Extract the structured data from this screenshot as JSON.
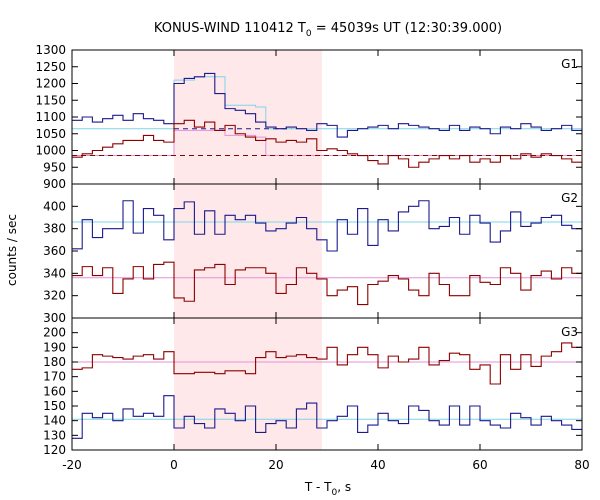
{
  "chart_data": {
    "type": "line",
    "title": "KONUS-WIND 110412 T",
    "title_sub": "0",
    "title_rest": " = 45039s UT (12:30:39.000)",
    "xlabel": "T - T",
    "xlabel_sub": "0",
    "xlabel_rest": ", s",
    "ylabel": "counts / sec",
    "xlim": [
      -20,
      80
    ],
    "x_ticks": [
      -20,
      0,
      20,
      40,
      60,
      80
    ],
    "x_tick_labels": [
      "-20",
      "0",
      "20",
      "40",
      "60",
      "80"
    ],
    "highlight_interval": [
      0,
      29
    ],
    "highlight_color": "#ffe8ea",
    "bin_edges": [
      -20,
      -18,
      -16,
      -14,
      -12,
      -10,
      -8,
      -6,
      -4,
      -2,
      0,
      2,
      4,
      6,
      8,
      10,
      12,
      14,
      16,
      18,
      20,
      22,
      24,
      26,
      28,
      30,
      32,
      34,
      36,
      38,
      40,
      42,
      44,
      46,
      48,
      50,
      52,
      54,
      56,
      58,
      60,
      62,
      64,
      66,
      68,
      70,
      72,
      74,
      76,
      78,
      80
    ],
    "panels": [
      {
        "label": "G1",
        "ylim": [
          900,
          1300
        ],
        "y_ticks": [
          900,
          950,
          1000,
          1050,
          1100,
          1150,
          1200,
          1250,
          1300
        ],
        "y_tick_labels": [
          "900",
          "950",
          "1000",
          "1050",
          "1100",
          "1150",
          "1200",
          "1250",
          "1300"
        ],
        "series": [
          {
            "color": "#1a1a8c",
            "values": [
              1090,
              1100,
              1085,
              1095,
              1105,
              1090,
              1110,
              1095,
              1090,
              1080,
              1200,
              1215,
              1220,
              1230,
              1170,
              1125,
              1120,
              1110,
              1085,
              1070,
              1065,
              1070,
              1065,
              1060,
              1080,
              1075,
              1040,
              1060,
              1065,
              1070,
              1075,
              1065,
              1080,
              1075,
              1070,
              1065,
              1060,
              1075,
              1060,
              1070,
              1065,
              1050,
              1070,
              1065,
              1080,
              1070,
              1060,
              1065,
              1075,
              1060
            ]
          },
          {
            "color": "#8b0000",
            "values": [
              980,
              990,
              1000,
              1010,
              1020,
              1030,
              1030,
              1045,
              1030,
              1025,
              1080,
              1090,
              1070,
              1085,
              1060,
              1075,
              1050,
              1040,
              1030,
              1035,
              1025,
              1030,
              1025,
              1035,
              1000,
              1005,
              1000,
              990,
              985,
              970,
              960,
              985,
              975,
              950,
              965,
              975,
              985,
              975,
              985,
              965,
              975,
              965,
              985,
              975,
              990,
              980,
              990,
              985,
              975,
              965
            ]
          }
        ],
        "model": [
          {
            "color": "#7fd4e8",
            "values": [
              1065,
              1065,
              1065,
              1065,
              1065,
              1065,
              1065,
              1065,
              1065,
              1065,
              1210,
              1210,
              1220,
              1220,
              1220,
              1135,
              1135,
              1135,
              1130,
              1065,
              1065,
              1065,
              1065,
              1065,
              1065,
              1065,
              1065,
              1065,
              1065,
              1065,
              1065,
              1065,
              1065,
              1065,
              1065,
              1065,
              1065,
              1065,
              1065,
              1065,
              1065,
              1065,
              1065,
              1065,
              1065,
              1065,
              1065,
              1065,
              1065,
              1065
            ]
          },
          {
            "color": "#e68fd6",
            "values": [
              985,
              985,
              985,
              985,
              985,
              985,
              985,
              985,
              985,
              985,
              1060,
              1060,
              1060,
              1060,
              1060,
              1045,
              1045,
              1045,
              1040,
              985,
              985,
              985,
              985,
              985,
              985,
              985,
              985,
              985,
              985,
              985,
              985,
              985,
              985,
              985,
              985,
              985,
              985,
              985,
              985,
              985,
              985,
              985,
              985,
              985,
              985,
              985,
              985,
              985,
              985,
              985
            ]
          }
        ],
        "background": [
          {
            "color": "#1a1a8c",
            "x": [
              0,
              23
            ],
            "y": 1065
          },
          {
            "color": "#8b0000",
            "x": [
              -20,
              80
            ],
            "y": 985
          }
        ]
      },
      {
        "label": "G2",
        "ylim": [
          300,
          420
        ],
        "y_ticks": [
          300,
          320,
          340,
          360,
          380,
          400
        ],
        "y_tick_labels": [
          "300",
          "320",
          "340",
          "360",
          "380",
          "400"
        ],
        "series": [
          {
            "color": "#1a1a8c",
            "values": [
              362,
              388,
              372,
              380,
              380,
              405,
              376,
              398,
              392,
              370,
              398,
              404,
              375,
              396,
              375,
              392,
              388,
              392,
              385,
              378,
              380,
              385,
              390,
              380,
              370,
              360,
              388,
              375,
              398,
              365,
              388,
              378,
              395,
              400,
              405,
              380,
              382,
              390,
              375,
              392,
              385,
              368,
              378,
              395,
              382,
              385,
              390,
              392,
              383,
              380
            ]
          },
          {
            "color": "#8b0000",
            "values": [
              338,
              346,
              338,
              345,
              322,
              335,
              346,
              335,
              348,
              350,
              318,
              315,
              343,
              345,
              348,
              330,
              343,
              345,
              345,
              340,
              322,
              330,
              345,
              340,
              335,
              320,
              325,
              328,
              312,
              330,
              333,
              338,
              335,
              325,
              320,
              340,
              330,
              320,
              320,
              338,
              332,
              330,
              345,
              340,
              325,
              338,
              342,
              335,
              345,
              340
            ]
          }
        ],
        "model": [
          {
            "color": "#7fd4e8",
            "values": [
              386,
              386,
              386,
              386,
              386,
              386,
              386,
              386,
              386,
              386,
              386,
              386,
              386,
              386,
              386,
              386,
              386,
              386,
              386,
              386,
              386,
              386,
              386,
              386,
              386,
              386,
              386,
              386,
              386,
              386,
              386,
              386,
              386,
              386,
              386,
              386,
              386,
              386,
              386,
              386,
              386,
              386,
              386,
              386,
              386,
              386,
              386,
              386,
              386,
              386
            ]
          },
          {
            "color": "#e68fd6",
            "values": [
              336,
              336,
              336,
              336,
              336,
              336,
              336,
              336,
              336,
              336,
              336,
              336,
              336,
              336,
              336,
              336,
              336,
              336,
              336,
              336,
              336,
              336,
              336,
              336,
              336,
              336,
              336,
              336,
              336,
              336,
              336,
              336,
              336,
              336,
              336,
              336,
              336,
              336,
              336,
              336,
              336,
              336,
              336,
              336,
              336,
              336,
              336,
              336,
              336,
              336
            ]
          }
        ],
        "background": []
      },
      {
        "label": "G3",
        "ylim": [
          120,
          210
        ],
        "y_ticks": [
          120,
          130,
          140,
          150,
          160,
          170,
          180,
          190,
          200
        ],
        "y_tick_labels": [
          "120",
          "130",
          "140",
          "150",
          "160",
          "170",
          "180",
          "190",
          "200"
        ],
        "series": [
          {
            "color": "#1a1a8c",
            "values": [
              128,
              145,
              142,
              145,
              140,
              148,
              143,
              145,
              143,
              157,
              135,
              143,
              138,
              135,
              148,
              145,
              140,
              150,
              132,
              138,
              140,
              135,
              148,
              152,
              135,
              140,
              143,
              150,
              132,
              137,
              145,
              140,
              138,
              150,
              147,
              140,
              137,
              150,
              137,
              150,
              140,
              137,
              135,
              145,
              142,
              137,
              143,
              140,
              137,
              134
            ]
          },
          {
            "color": "#8b0000",
            "values": [
              175,
              176,
              185,
              184,
              183,
              182,
              184,
              185,
              182,
              187,
              172,
              172,
              173,
              173,
              172,
              174,
              174,
              172,
              183,
              187,
              183,
              184,
              185,
              183,
              182,
              190,
              178,
              185,
              190,
              185,
              176,
              184,
              180,
              182,
              190,
              178,
              181,
              186,
              185,
              175,
              178,
              165,
              185,
              175,
              185,
              177,
              184,
              187,
              193,
              190
            ]
          }
        ],
        "model": [
          {
            "color": "#7fd4e8",
            "values": [
              141,
              141,
              141,
              141,
              141,
              141,
              141,
              141,
              141,
              141,
              141,
              141,
              141,
              141,
              141,
              141,
              141,
              141,
              141,
              141,
              141,
              141,
              141,
              141,
              141,
              141,
              141,
              141,
              141,
              141,
              141,
              141,
              141,
              141,
              141,
              141,
              141,
              141,
              141,
              141,
              141,
              141,
              141,
              141,
              141,
              141,
              141,
              141,
              141,
              141
            ]
          },
          {
            "color": "#e68fd6",
            "values": [
              180,
              180,
              180,
              180,
              180,
              180,
              180,
              180,
              180,
              180,
              180,
              180,
              180,
              180,
              180,
              180,
              180,
              180,
              180,
              180,
              180,
              180,
              180,
              180,
              180,
              180,
              180,
              180,
              180,
              180,
              180,
              180,
              180,
              180,
              180,
              180,
              180,
              180,
              180,
              180,
              180,
              180,
              180,
              180,
              180,
              180,
              180,
              180,
              180,
              180
            ]
          }
        ],
        "background": []
      }
    ]
  }
}
